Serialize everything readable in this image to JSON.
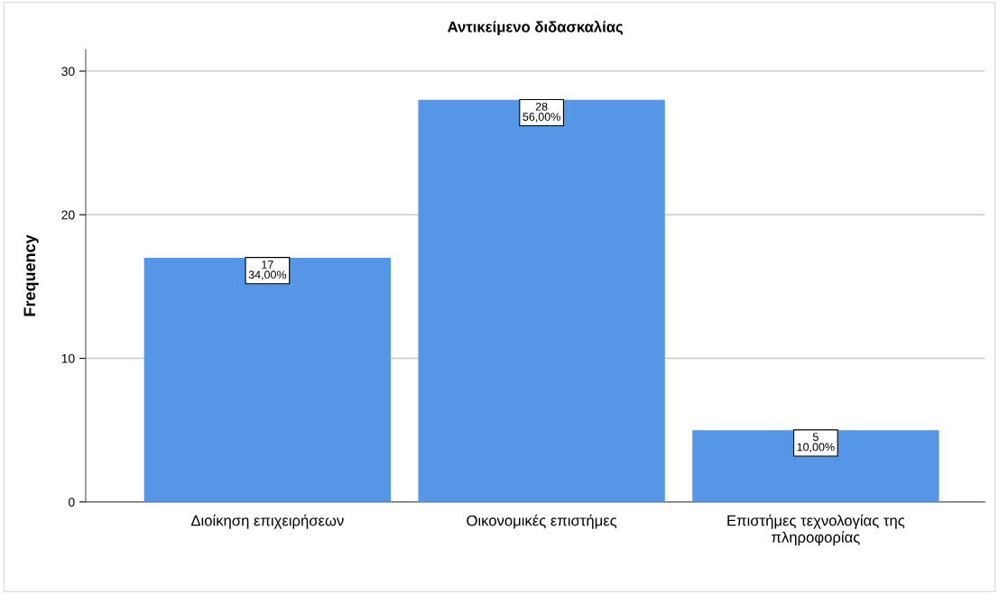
{
  "chart_data": {
    "type": "bar",
    "title": "Αντικείμενο διδασκαλίας",
    "ylabel": "Frequency",
    "categories": [
      "Διοίκηση επιχειρήσεων",
      "Οικονομικές επιστήμες",
      "Επιστήμες τεχνολογίας της\nπληροφορίας"
    ],
    "values": [
      17,
      28,
      5
    ],
    "color": "#5596e6",
    "value_labels": [
      "17\n34,00%",
      "28\n56,00%",
      "5\n10,00%"
    ],
    "ylim": [
      0,
      31.5
    ],
    "yticks": [
      0,
      10,
      20,
      30
    ],
    "grid": "y",
    "legend": false
  }
}
